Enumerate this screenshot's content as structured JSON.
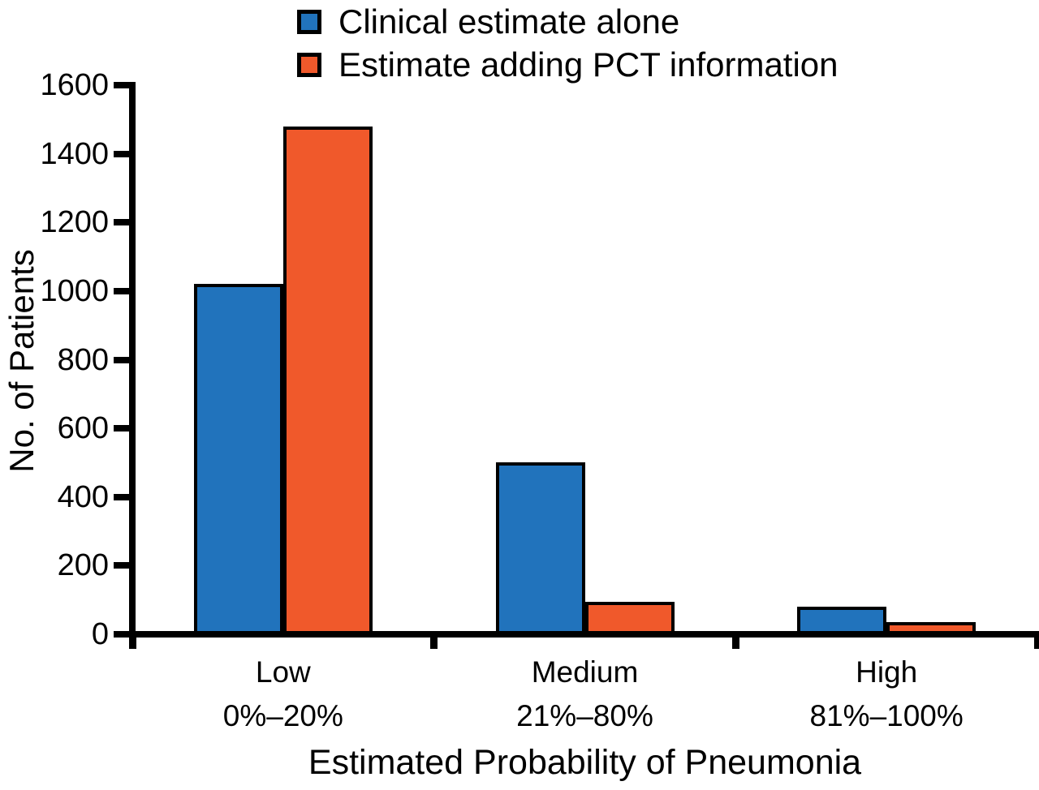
{
  "chart_data": {
    "type": "bar",
    "title": "",
    "xlabel": "Estimated Probability of Pneumonia",
    "ylabel": "No. of Patients",
    "categories": [
      "Low",
      "Medium",
      "High"
    ],
    "category_sublabels": [
      "0%–20%",
      "21%–80%",
      "81%–100%"
    ],
    "series": [
      {
        "name": "Clinical estimate alone",
        "color": "#2173BC",
        "values": [
          1020,
          500,
          80
        ]
      },
      {
        "name": "Estimate adding PCT information",
        "color": "#F0592B",
        "values": [
          1480,
          95,
          35
        ]
      }
    ],
    "ylim": [
      0,
      1600
    ],
    "ytick_step": 200,
    "yticks": [
      0,
      200,
      400,
      600,
      800,
      1000,
      1200,
      1400,
      1600
    ],
    "grid": false,
    "legend_position": "top",
    "bar_outline_color": "#000000",
    "axis_color": "#000000"
  }
}
